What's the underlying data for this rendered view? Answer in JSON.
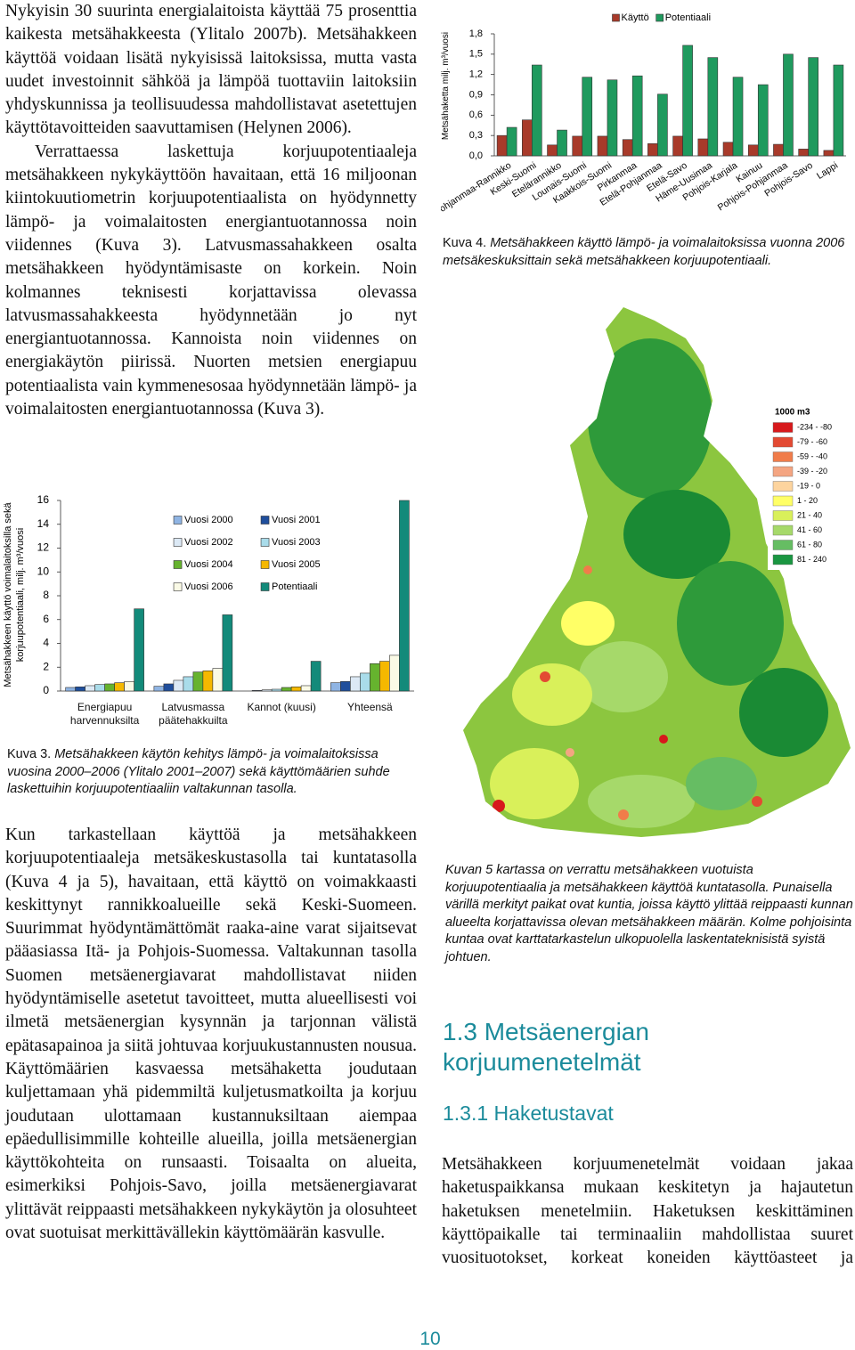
{
  "left_column": {
    "paragraphs_top": [
      "Nykyisin 30 suurinta energialaitoista käyttää 75 prosenttia kaikesta metsähakkeesta (Ylitalo 2007b). Metsähakkeen käyttöä voidaan lisätä nykyisissä laitoksissa, mutta vasta uudet investoinnit sähköä ja lämpöä tuottaviin laitoksiin yhdyskunnissa ja teollisuudessa mahdollistavat asetettujen käyttötavoitteiden saavuttamisen (Helynen 2006).",
      "Verrattaessa laskettuja korjuupotentiaaleja metsähakkeen nykykäyttöön havaitaan, että 16 miljoonan kiintokuutiometrin korjuupotentiaalista on hyödynnetty lämpö- ja voimalaitosten energiantuotannossa noin viidennes (Kuva 3). Latvusmassahakkeen osalta metsähakkeen hyödyntämisaste on korkein. Noin kolmannes teknisesti korjattavissa olevassa latvusmassahakkeesta hyödynnetään jo nyt energiantuotannossa. Kannoista noin viidennes on energiakäytön piirissä. Nuorten metsien energiapuu potentiaalista vain kymmenesosaa hyödynnetään lämpö- ja voimalaitosten energiantuotannossa (Kuva 3)."
    ],
    "paragraphs_bottom": [
      "Kun tarkastellaan käyttöä ja metsähakkeen korjuupotentiaaleja metsäkeskustasolla tai kuntatasolla (Kuva 4 ja 5), havaitaan, että käyttö on voimakkaasti keskittynyt rannikkoalueille sekä Keski-Suomeen. Suurimmat hyödyntämättömät raaka-aine varat sijaitsevat pääasiassa Itä- ja Pohjois-Suomessa. Valtakunnan tasolla Suomen metsäenergiavarat mahdollistavat niiden hyödyntämiselle asetetut tavoitteet, mutta alueellisesti voi ilmetä metsäenergian kysynnän ja tarjonnan välistä epätasapainoa ja siitä johtuvaa korjuukustannusten nousua. Käyttömäärien kasvaessa metsähaketta joudutaan kuljettamaan yhä pidemmiltä kuljetusmatkoilta ja korjuu joudutaan ulottamaan kustannuksiltaan aiempaa epäedullisimmille kohteille alueilla, joilla metsäenergian käyttökohteita on runsaasti. Toisaalta on alueita, esimerkiksi Pohjois-Savo, joilla metsäenergiavarat ylittävät reippaasti metsähakkeen nykykäytön ja olosuhteet ovat suotuisat merkittävällekin käyttömäärän kasvulle."
    ]
  },
  "figure_3": {
    "caption_label": "Kuva 3.",
    "caption_text": "Metsähakkeen käytön kehitys lämpö- ja voimalaitoksissa vuosina 2000–2006 (Ylitalo 2001–2007) sekä käyttömäärien suhde laskettuihin korjuupotentiaaliin valtakunnan tasolla."
  },
  "figure_4": {
    "caption_label": "Kuva 4.",
    "caption_text": "Metsähakkeen käyttö lämpö- ja voimalaitoksissa vuonna 2006 metsäkeskuksittain sekä metsähakkeen korjuupotentiaali."
  },
  "chart_data": [
    {
      "type": "bar",
      "ylabel": [
        "Metsähakkeen käyttö voimalaitoksilla sekä",
        "korjuupotentiaali, milj. m³/vuosi"
      ],
      "categories": [
        "Energiapuu harvennuksilta",
        "Latvusmassa päätehakkuilta",
        "Kannot (kuusi)",
        "Yhteensä"
      ],
      "series": [
        {
          "name": "Vuosi 2000",
          "color": "#8fb4e3",
          "values": [
            0.3,
            0.4,
            0.0,
            0.7
          ]
        },
        {
          "name": "Vuosi 2001",
          "color": "#1f4e9c",
          "values": [
            0.35,
            0.6,
            0.05,
            0.8
          ]
        },
        {
          "name": "Vuosi 2002",
          "color": "#dce9f5",
          "values": [
            0.45,
            0.9,
            0.1,
            1.2
          ]
        },
        {
          "name": "Vuosi 2003",
          "color": "#a9dcea",
          "values": [
            0.55,
            1.2,
            0.15,
            1.5
          ]
        },
        {
          "name": "Vuosi 2004",
          "color": "#66b32e",
          "values": [
            0.6,
            1.6,
            0.3,
            2.3
          ]
        },
        {
          "name": "Vuosi 2005",
          "color": "#f5b800",
          "values": [
            0.7,
            1.7,
            0.35,
            2.5
          ]
        },
        {
          "name": "Vuosi 2006",
          "color": "#fafae6",
          "values": [
            0.8,
            1.9,
            0.45,
            3.0
          ]
        },
        {
          "name": "Potentiaali",
          "color": "#138a7a",
          "values": [
            6.9,
            6.4,
            2.5,
            16.0
          ]
        }
      ],
      "ylim": [
        0,
        16
      ],
      "yticks": [
        0,
        2,
        4,
        6,
        8,
        10,
        12,
        14,
        16
      ],
      "legend": "upper-center"
    },
    {
      "type": "bar",
      "ylabel": "Metsähaketta milj. m³/vuosi",
      "categories": [
        "Pohjanmaa-Rannikko",
        "Keski-Suomi",
        "Etelärannikko",
        "Lounais-Suomi",
        "Kaakkois-Suomi",
        "Pirkanmaa",
        "Etelä-Pohjanmaa",
        "Etelä-Savo",
        "Häme-Uusimaa",
        "Pohjois-Karjala",
        "Kainuu",
        "Pohjois-Pohjanmaa",
        "Pohjois-Savo",
        "Lappi"
      ],
      "series": [
        {
          "name": "Käyttö",
          "color": "#a83a2a",
          "values": [
            0.3,
            0.53,
            0.16,
            0.29,
            0.29,
            0.24,
            0.18,
            0.29,
            0.25,
            0.2,
            0.16,
            0.17,
            0.1,
            0.08
          ]
        },
        {
          "name": "Potentiaali",
          "color": "#1f9a5e",
          "values": [
            0.42,
            1.34,
            0.38,
            1.16,
            1.12,
            1.18,
            0.91,
            1.63,
            1.45,
            1.16,
            1.05,
            1.5,
            1.45,
            1.34
          ]
        }
      ],
      "ylim": [
        0,
        1.8
      ],
      "yticks": [
        {
          "value": 0,
          "label": "0,0"
        },
        {
          "value": 0.3,
          "label": "0,3"
        },
        {
          "value": 0.6,
          "label": "0,6"
        },
        {
          "value": 0.9,
          "label": "0,9"
        },
        {
          "value": 1.2,
          "label": "1,2"
        },
        {
          "value": 1.5,
          "label": "1,5"
        },
        {
          "value": 1.8,
          "label": "1,8"
        }
      ],
      "legend": "upper-center"
    }
  ],
  "map": {
    "legend_title": "1000 m3",
    "legend": [
      {
        "label": "-234 - -80",
        "color": "#d7191c"
      },
      {
        "label": "-79 - -60",
        "color": "#e34a33"
      },
      {
        "label": "-59 - -40",
        "color": "#f07c4a"
      },
      {
        "label": "-39 - -20",
        "color": "#f4a582"
      },
      {
        "label": "-19 - 0",
        "color": "#fdd49e"
      },
      {
        "label": "1 - 20",
        "color": "#ffff66"
      },
      {
        "label": "21 - 40",
        "color": "#d9f05a"
      },
      {
        "label": "41 - 60",
        "color": "#a6d96a"
      },
      {
        "label": "61 - 80",
        "color": "#66bd63"
      },
      {
        "label": "81 - 240",
        "color": "#1a9641"
      }
    ],
    "caption": "Kuvan 5 kartassa on verrattu metsähakkeen vuotuista korjuupotentiaalia ja metsähakkeen käyttöä kuntatasolla. Punaisella värillä merkityt paikat ovat kuntia, joissa käyttö ylittää reippaasti kunnan alueelta korjattavissa olevan metsähakkeen määrän. Kolme pohjoisinta kuntaa ovat karttatarkastelun ulkopuolella laskentateknisistä syistä johtuen."
  },
  "section": {
    "heading": "1.3 Metsäenergian korjuumenetelmät",
    "subheading": "1.3.1 Haketustavat",
    "paragraph": "Metsähakkeen korjuumenetelmät voidaan jakaa haketuspaikkansa mukaan keskitetyn ja hajautetun haketuksen menetelmiin. Haketuksen keskittäminen käyttöpaikalle tai terminaaliin mahdollistaa suuret vuosituotokset, korkeat koneiden käyttöasteet ja"
  },
  "page_number": "10"
}
